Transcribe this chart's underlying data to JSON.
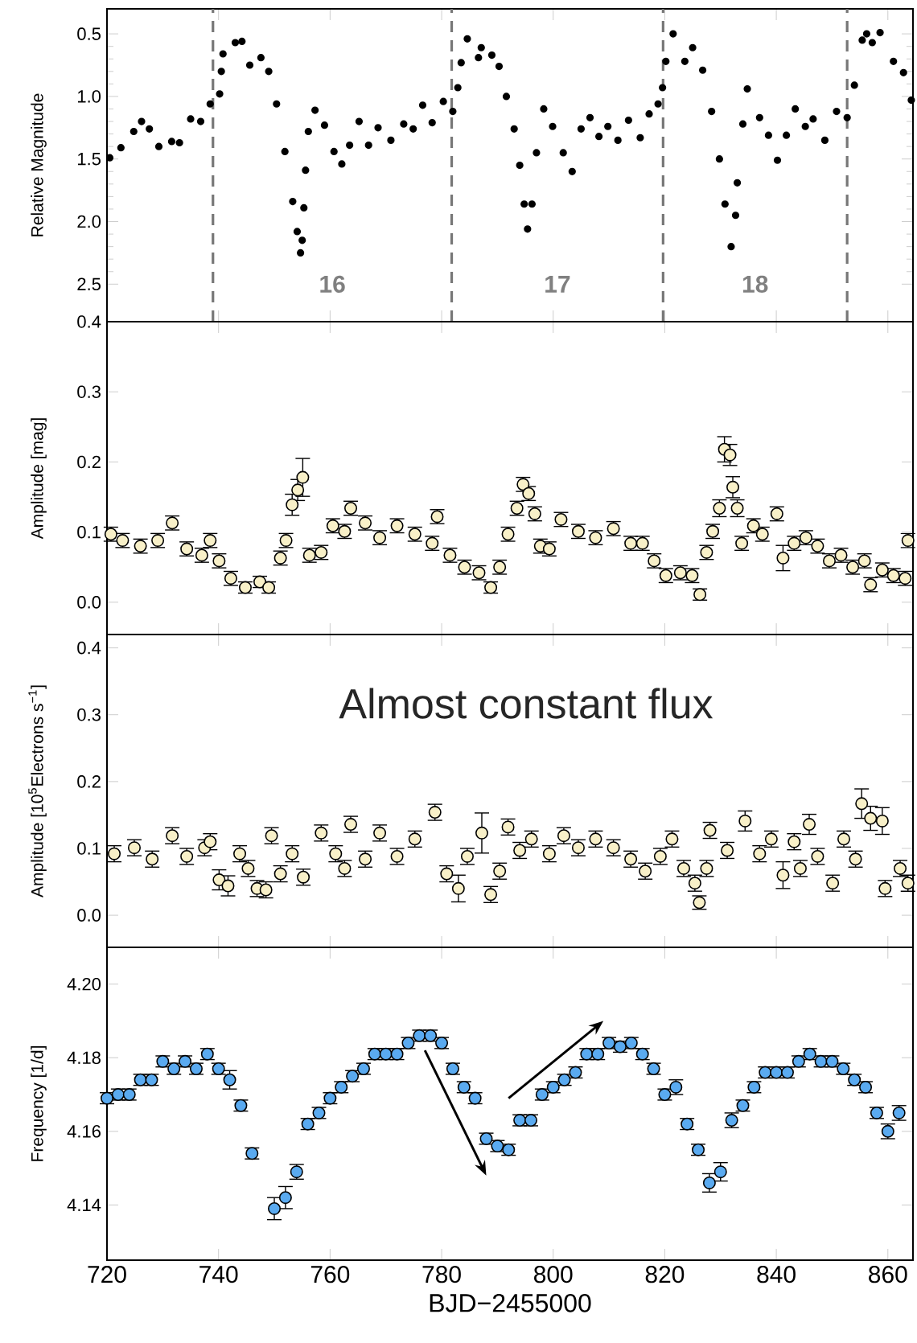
{
  "chart_data": [
    {
      "type": "scatter",
      "ylabel": "Relative Magnitude",
      "tick_labels": "y",
      "xlim": [
        720,
        864.5
      ],
      "xticks": [
        720,
        740,
        760,
        780,
        800,
        820,
        840,
        860
      ],
      "ylim": [
        2.8,
        0.3
      ],
      "yticks": [
        0.5,
        {
          "value": 1.0,
          "label": "1.0"
        },
        1.5,
        {
          "value": 2.0,
          "label": "2.0"
        },
        2.5
      ],
      "ref_lines": [
        {
          "axis": "x",
          "value": 739.0,
          "color": "#777777",
          "line_style": "dashed"
        },
        {
          "axis": "x",
          "value": 781.8,
          "color": "#777777",
          "line_style": "dashed"
        },
        {
          "axis": "x",
          "value": 819.7,
          "color": "#777777",
          "line_style": "dashed"
        },
        {
          "axis": "x",
          "value": 852.7,
          "color": "#777777",
          "line_style": "dashed"
        }
      ],
      "annotations": [
        "16",
        "17",
        "18"
      ],
      "series": [
        {
          "color": "#000000",
          "x": [
            720.5,
            722.5,
            724.8,
            726.2,
            727.6,
            729.3,
            731.6,
            733.0,
            735.0,
            736.8,
            738.5,
            740.2,
            740.5,
            740.8,
            743.0,
            744.2,
            745.6,
            747.6,
            749.0,
            750.4,
            751.9,
            753.3,
            754.1,
            754.7,
            755.0,
            755.3,
            755.6,
            756.1,
            757.3,
            759.0,
            760.7,
            762.1,
            763.5,
            765.2,
            766.9,
            768.6,
            770.9,
            773.2,
            774.9,
            776.6,
            778.3,
            780.3,
            782.0,
            782.9,
            783.5,
            784.6,
            786.6,
            787.1,
            789.0,
            790.3,
            791.6,
            793.0,
            794.0,
            794.8,
            795.4,
            796.2,
            797.0,
            798.3,
            799.9,
            801.8,
            803.4,
            805.0,
            806.6,
            808.2,
            809.8,
            811.6,
            813.5,
            815.6,
            817.2,
            818.8,
            819.6,
            820.2,
            821.5,
            823.6,
            825.0,
            826.8,
            828.4,
            829.8,
            830.8,
            831.9,
            832.7,
            833.0,
            834.0,
            834.8,
            837.0,
            838.6,
            840.2,
            841.8,
            843.4,
            845.2,
            846.6,
            848.7,
            850.8,
            852.7,
            854.0,
            855.4,
            856.2,
            857.2,
            858.6,
            861.0,
            862.8,
            864.2
          ],
          "values": [
            1.49,
            1.41,
            1.28,
            1.2,
            1.26,
            1.4,
            1.36,
            1.37,
            1.18,
            1.2,
            1.06,
            0.98,
            0.8,
            0.66,
            0.57,
            0.56,
            0.75,
            0.69,
            0.8,
            1.06,
            1.44,
            1.84,
            2.08,
            2.25,
            2.15,
            1.89,
            1.59,
            1.28,
            1.11,
            1.23,
            1.44,
            1.54,
            1.39,
            1.2,
            1.39,
            1.25,
            1.35,
            1.22,
            1.26,
            1.07,
            1.21,
            1.04,
            1.12,
            0.93,
            0.73,
            0.54,
            0.69,
            0.61,
            0.67,
            0.76,
            1.0,
            1.26,
            1.55,
            1.86,
            2.06,
            1.86,
            1.45,
            1.1,
            1.24,
            1.45,
            1.6,
            1.26,
            1.17,
            1.32,
            1.24,
            1.35,
            1.19,
            1.33,
            1.14,
            1.06,
            0.93,
            0.72,
            0.5,
            0.72,
            0.61,
            0.79,
            1.12,
            1.5,
            1.86,
            2.2,
            1.95,
            1.69,
            1.22,
            0.94,
            1.17,
            1.31,
            1.51,
            1.31,
            1.1,
            1.24,
            1.18,
            1.35,
            1.12,
            1.17,
            0.91,
            0.55,
            0.5,
            0.57,
            0.49,
            0.72,
            0.81,
            1.03
          ]
        }
      ]
    },
    {
      "type": "scatter",
      "ylabel": "Amplitude [mag]",
      "tick_labels": "y",
      "xlim": [
        720,
        864.5
      ],
      "xticks": [
        720,
        740,
        760,
        780,
        800,
        820,
        840,
        860
      ],
      "ylim": [
        -0.046,
        0.4
      ],
      "yticks": [
        {
          "value": 0.0,
          "label": "0.0"
        },
        0.1,
        0.2,
        0.3,
        0.4
      ],
      "series": [
        {
          "color": "#f8f0c8",
          "x": [
            720.7,
            722.8,
            726.0,
            729.1,
            731.7,
            734.3,
            737.0,
            738.5,
            740.1,
            742.2,
            744.8,
            747.4,
            749.0,
            751.1,
            752.1,
            753.2,
            754.2,
            755.1,
            756.3,
            758.4,
            760.5,
            762.6,
            763.7,
            766.3,
            768.9,
            772.0,
            775.2,
            778.3,
            779.2,
            781.5,
            784.1,
            786.7,
            788.8,
            790.4,
            791.9,
            793.5,
            794.6,
            795.6,
            796.7,
            797.7,
            799.3,
            801.4,
            804.5,
            807.6,
            810.8,
            813.9,
            816.0,
            818.1,
            820.2,
            822.8,
            824.9,
            826.3,
            827.5,
            828.6,
            829.8,
            830.7,
            831.7,
            832.2,
            833.0,
            833.8,
            835.9,
            837.5,
            840.1,
            841.2,
            843.2,
            845.3,
            847.4,
            849.5,
            851.6,
            853.7,
            855.8,
            856.9,
            859.0,
            861.0,
            863.1,
            863.6
          ],
          "values": [
            0.097,
            0.088,
            0.08,
            0.088,
            0.113,
            0.076,
            0.067,
            0.088,
            0.059,
            0.034,
            0.021,
            0.029,
            0.021,
            0.063,
            0.088,
            0.139,
            0.16,
            0.178,
            0.067,
            0.071,
            0.109,
            0.101,
            0.134,
            0.113,
            0.092,
            0.109,
            0.097,
            0.084,
            0.122,
            0.067,
            0.05,
            0.042,
            0.021,
            0.05,
            0.097,
            0.134,
            0.168,
            0.155,
            0.126,
            0.08,
            0.076,
            0.118,
            0.101,
            0.092,
            0.105,
            0.084,
            0.084,
            0.059,
            0.038,
            0.042,
            0.038,
            0.011,
            0.071,
            0.101,
            0.134,
            0.218,
            0.21,
            0.164,
            0.134,
            0.084,
            0.109,
            0.097,
            0.126,
            0.063,
            0.084,
            0.092,
            0.08,
            0.059,
            0.067,
            0.05,
            0.059,
            0.025,
            0.046,
            0.038,
            0.034,
            0.088
          ],
          "errors": [
            0.01,
            0.01,
            0.01,
            0.01,
            0.01,
            0.01,
            0.01,
            0.01,
            0.01,
            0.01,
            0.008,
            0.008,
            0.008,
            0.01,
            0.01,
            0.015,
            0.015,
            0.027,
            0.01,
            0.01,
            0.01,
            0.01,
            0.01,
            0.01,
            0.01,
            0.01,
            0.01,
            0.01,
            0.01,
            0.01,
            0.01,
            0.01,
            0.008,
            0.01,
            0.01,
            0.01,
            0.01,
            0.01,
            0.01,
            0.01,
            0.01,
            0.01,
            0.01,
            0.01,
            0.01,
            0.01,
            0.01,
            0.01,
            0.01,
            0.01,
            0.01,
            0.008,
            0.01,
            0.01,
            0.012,
            0.018,
            0.015,
            0.015,
            0.012,
            0.01,
            0.01,
            0.01,
            0.01,
            0.018,
            0.01,
            0.01,
            0.01,
            0.01,
            0.01,
            0.01,
            0.01,
            0.01,
            0.01,
            0.01,
            0.01,
            0.01
          ]
        }
      ]
    },
    {
      "type": "scatter",
      "ylabel": "Amplitude [10$^{5}$Electrons s$^{−1}$]",
      "tick_labels": "y",
      "annotations": [
        "Almost constant flux"
      ],
      "xlim": [
        720,
        864.5
      ],
      "xticks": [
        720,
        740,
        760,
        780,
        800,
        820,
        840,
        860
      ],
      "ylim": [
        -0.048,
        0.42
      ],
      "yticks": [
        {
          "value": 0.0,
          "label": "0.0"
        },
        0.1,
        0.2,
        0.3,
        0.4
      ],
      "series": [
        {
          "color": "#f8f0c8",
          "x": [
            721.3,
            724.9,
            728.1,
            731.7,
            734.3,
            737.5,
            738.5,
            740.1,
            741.7,
            743.8,
            745.3,
            746.9,
            748.5,
            749.5,
            751.1,
            753.2,
            755.2,
            758.4,
            761.0,
            762.6,
            763.7,
            766.3,
            768.9,
            772.0,
            775.2,
            778.8,
            780.9,
            783.0,
            784.6,
            787.2,
            788.8,
            790.4,
            791.9,
            794.0,
            796.1,
            799.3,
            801.9,
            804.5,
            807.6,
            810.8,
            813.9,
            816.5,
            819.2,
            821.3,
            823.4,
            825.4,
            826.2,
            827.5,
            828.1,
            831.2,
            834.4,
            837.0,
            839.1,
            841.2,
            843.2,
            844.3,
            845.9,
            847.4,
            850.1,
            852.1,
            854.2,
            855.3,
            856.9,
            859.0,
            859.5,
            862.2,
            863.6
          ],
          "values": [
            0.092,
            0.101,
            0.084,
            0.119,
            0.088,
            0.101,
            0.11,
            0.053,
            0.044,
            0.092,
            0.07,
            0.04,
            0.038,
            0.119,
            0.062,
            0.092,
            0.057,
            0.123,
            0.092,
            0.07,
            0.136,
            0.084,
            0.123,
            0.088,
            0.114,
            0.154,
            0.062,
            0.04,
            0.088,
            0.123,
            0.031,
            0.066,
            0.132,
            0.097,
            0.114,
            0.092,
            0.119,
            0.101,
            0.114,
            0.101,
            0.084,
            0.066,
            0.088,
            0.114,
            0.07,
            0.048,
            0.019,
            0.07,
            0.127,
            0.097,
            0.141,
            0.092,
            0.114,
            0.06,
            0.11,
            0.07,
            0.136,
            0.088,
            0.048,
            0.114,
            0.084,
            0.167,
            0.145,
            0.141,
            0.04,
            0.07,
            0.048
          ],
          "errors": [
            0.012,
            0.012,
            0.012,
            0.012,
            0.012,
            0.012,
            0.012,
            0.015,
            0.015,
            0.012,
            0.012,
            0.012,
            0.012,
            0.012,
            0.012,
            0.012,
            0.012,
            0.012,
            0.012,
            0.012,
            0.012,
            0.012,
            0.012,
            0.012,
            0.012,
            0.012,
            0.012,
            0.02,
            0.012,
            0.03,
            0.012,
            0.012,
            0.012,
            0.012,
            0.012,
            0.012,
            0.012,
            0.012,
            0.012,
            0.012,
            0.012,
            0.012,
            0.012,
            0.012,
            0.012,
            0.012,
            0.01,
            0.012,
            0.012,
            0.012,
            0.015,
            0.012,
            0.012,
            0.02,
            0.012,
            0.012,
            0.015,
            0.012,
            0.012,
            0.012,
            0.012,
            0.022,
            0.018,
            0.02,
            0.012,
            0.012,
            0.012
          ]
        }
      ]
    },
    {
      "type": "scatter",
      "xlabel": "BJD−2455000",
      "ylabel": "Frequency [1/d]",
      "xlim": [
        720,
        864.5
      ],
      "xticks": [
        720,
        740,
        760,
        780,
        800,
        820,
        840,
        860
      ],
      "ylim": [
        4.125,
        4.21
      ],
      "yticks": [
        4.14,
        4.16,
        4.18,
        {
          "value": 4.2,
          "label": "4.20"
        }
      ],
      "series": [
        {
          "color": "#5aaaf0",
          "x": [
            720,
            722,
            724,
            726,
            728,
            730,
            732,
            734,
            736,
            738,
            740,
            742,
            744,
            746,
            750,
            752,
            754,
            756,
            758,
            760,
            762,
            764,
            766,
            768,
            770,
            772,
            774,
            776,
            778,
            780,
            782,
            784,
            786,
            788,
            790,
            792,
            794,
            796,
            798,
            800,
            802,
            804,
            806,
            808,
            810,
            812,
            814,
            816,
            818,
            820,
            822,
            824,
            826,
            828,
            830,
            832,
            834,
            836,
            838,
            840,
            842,
            844,
            846,
            848,
            850,
            852,
            854,
            856,
            858,
            860,
            862
          ],
          "values": [
            4.169,
            4.17,
            4.17,
            4.174,
            4.174,
            4.179,
            4.177,
            4.179,
            4.177,
            4.181,
            4.177,
            4.174,
            4.167,
            4.154,
            4.139,
            4.142,
            4.149,
            4.162,
            4.165,
            4.169,
            4.172,
            4.175,
            4.177,
            4.181,
            4.181,
            4.181,
            4.184,
            4.186,
            4.186,
            4.184,
            4.177,
            4.172,
            4.169,
            4.158,
            4.156,
            4.155,
            4.163,
            4.163,
            4.17,
            4.172,
            4.174,
            4.176,
            4.181,
            4.181,
            4.184,
            4.183,
            4.184,
            4.181,
            4.177,
            4.17,
            4.172,
            4.162,
            4.155,
            4.146,
            4.149,
            4.163,
            4.167,
            4.172,
            4.176,
            4.176,
            4.176,
            4.179,
            4.181,
            4.179,
            4.179,
            4.177,
            4.174,
            4.172,
            4.165,
            4.16,
            4.165
          ],
          "errors": [
            0.0015,
            0.0015,
            0.0015,
            0.0015,
            0.0015,
            0.0015,
            0.0015,
            0.0015,
            0.0015,
            0.0015,
            0.0015,
            0.0025,
            0.0015,
            0.0015,
            0.003,
            0.003,
            0.002,
            0.0015,
            0.0015,
            0.0015,
            0.0015,
            0.0015,
            0.0015,
            0.0015,
            0.0015,
            0.0015,
            0.0015,
            0.0015,
            0.0015,
            0.0015,
            0.0015,
            0.0015,
            0.0015,
            0.0015,
            0.0015,
            0.0015,
            0.0015,
            0.0015,
            0.0015,
            0.0015,
            0.0015,
            0.0015,
            0.0015,
            0.0015,
            0.0015,
            0.0015,
            0.0015,
            0.0015,
            0.0015,
            0.0015,
            0.002,
            0.0015,
            0.0015,
            0.0025,
            0.0025,
            0.002,
            0.0015,
            0.0015,
            0.0015,
            0.0015,
            0.0015,
            0.0015,
            0.0015,
            0.0015,
            0.0015,
            0.0015,
            0.0015,
            0.0015,
            0.0015,
            0.002,
            0.002
          ]
        }
      ]
    }
  ]
}
